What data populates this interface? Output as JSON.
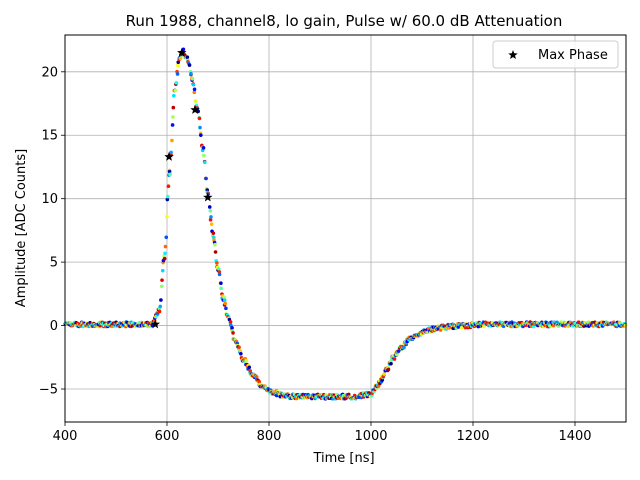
{
  "chart_data": {
    "type": "scatter",
    "title": "Run 1988, channel8, lo gain, Pulse w/ 60.0 dB Attenuation",
    "xlabel": "Time [ns]",
    "ylabel": "Amplitude [ADC Counts]",
    "xlim": [
      400,
      1500
    ],
    "ylim": [
      -7.6,
      22.9
    ],
    "xticks": [
      400,
      600,
      800,
      1000,
      1200,
      1400
    ],
    "yticks": [
      -5,
      0,
      5,
      10,
      15,
      20
    ],
    "grid": true,
    "legend_position": "upper-right",
    "colormap": "jet",
    "series": [
      {
        "name": "Max Phase",
        "marker": "star",
        "color": "#000000",
        "x": [
          577,
          604,
          629,
          655,
          680
        ],
        "y": [
          0.1,
          13.3,
          21.5,
          17.0,
          10.1
        ]
      }
    ],
    "pulse_shape": {
      "description_points_x": [
        400,
        570,
        585,
        595,
        605,
        615,
        625,
        632,
        640,
        650,
        660,
        670,
        680,
        690,
        700,
        710,
        720,
        735,
        750,
        770,
        790,
        810,
        830,
        850,
        880,
        910,
        940,
        970,
        1000,
        1015,
        1030,
        1045,
        1060,
        1075,
        1090,
        1110,
        1130,
        1150,
        1180,
        1220,
        1300,
        1400,
        1500
      ],
      "description_points_y": [
        0.1,
        0.1,
        1.2,
        5.5,
        12.0,
        18.5,
        21.2,
        21.6,
        21.0,
        19.3,
        16.9,
        14.0,
        10.5,
        7.2,
        4.5,
        2.2,
        0.6,
        -1.3,
        -2.7,
        -4.0,
        -4.9,
        -5.3,
        -5.5,
        -5.6,
        -5.6,
        -5.6,
        -5.6,
        -5.6,
        -5.4,
        -4.6,
        -3.5,
        -2.5,
        -1.7,
        -1.1,
        -0.7,
        -0.4,
        -0.2,
        -0.1,
        0.0,
        0.1,
        0.1,
        0.1,
        0.1
      ]
    }
  }
}
